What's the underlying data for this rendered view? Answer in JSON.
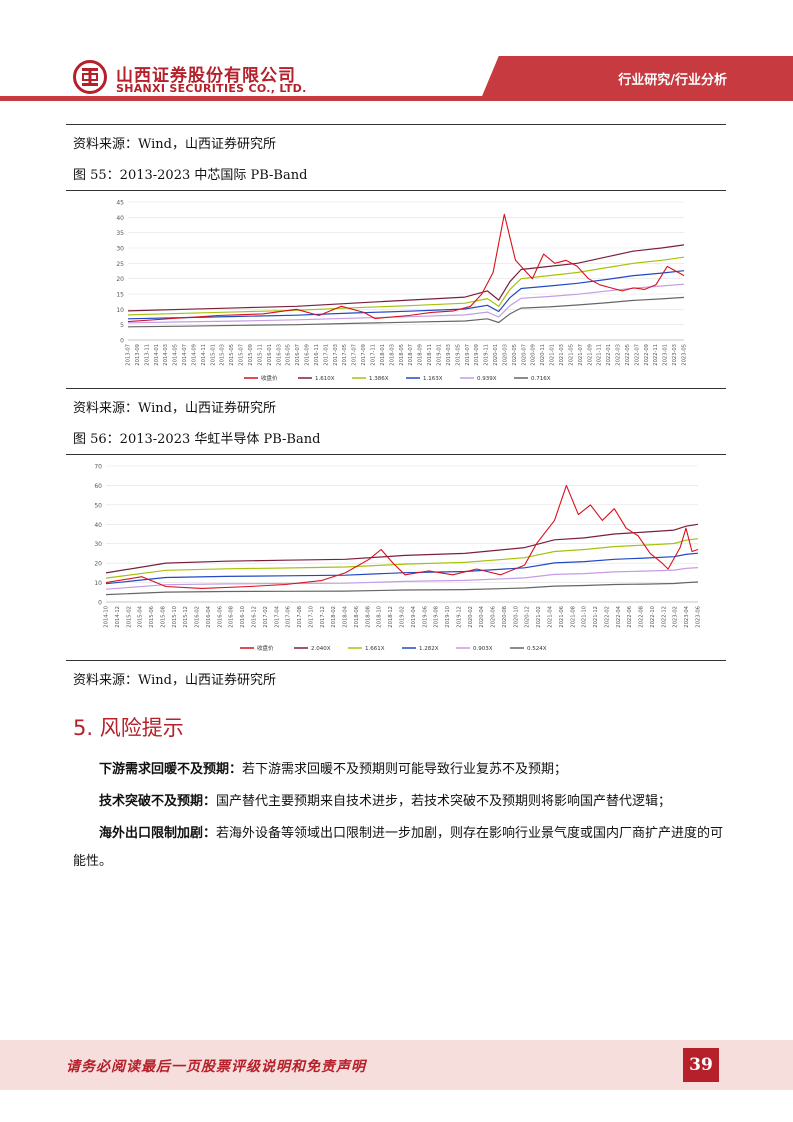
{
  "header": {
    "brand_cn": "山西证券股份有限公司",
    "brand_en": "SHANXI SECURITIES CO., LTD.",
    "section_tag": "行业研究/行业分析",
    "brand_color": "#b5202a"
  },
  "source_top": "资料来源：Wind，山西证券研究所",
  "figure55": {
    "title": "图 55：2013-2023 中芯国际 PB-Band",
    "source": "资料来源：Wind，山西证券研究所"
  },
  "figure56": {
    "title": "图 56：2013-2023 华虹半导体 PB-Band",
    "source": "资料来源：Wind，山西证券研究所"
  },
  "chart_data": [
    {
      "type": "line",
      "title": "",
      "ylim": [
        0,
        45
      ],
      "yticks": [
        "0",
        "5",
        "10",
        "15",
        "20",
        "25",
        "30",
        "35",
        "40",
        "45"
      ],
      "xticks": [
        "2013-07",
        "2013-09",
        "2013-11",
        "2014-01",
        "2014-03",
        "2014-05",
        "2014-07",
        "2014-09",
        "2014-11",
        "2015-01",
        "2015-03",
        "2015-05",
        "2015-07",
        "2015-09",
        "2015-11",
        "2016-01",
        "2016-03",
        "2016-05",
        "2016-07",
        "2016-09",
        "2016-11",
        "2017-01",
        "2017-03",
        "2017-05",
        "2017-07",
        "2017-09",
        "2017-11",
        "2018-01",
        "2018-03",
        "2018-05",
        "2018-07",
        "2018-09",
        "2018-11",
        "2019-01",
        "2019-03",
        "2019-05",
        "2019-07",
        "2019-09",
        "2019-11",
        "2020-01",
        "2020-03",
        "2020-05",
        "2020-07",
        "2020-09",
        "2020-11",
        "2021-01",
        "2021-03",
        "2021-05",
        "2021-07",
        "2021-09",
        "2021-11",
        "2022-01",
        "2022-03",
        "2022-05",
        "2022-07",
        "2022-09",
        "2022-11",
        "2023-01",
        "2023-03",
        "2023-05"
      ],
      "legend_position": "bottom",
      "series": [
        {
          "name": "收盘价",
          "color": "#d8111b",
          "points": [
            [
              0,
              6
            ],
            [
              8,
              7
            ],
            [
              16,
              8
            ],
            [
              24,
              8.5
            ],
            [
              30,
              10
            ],
            [
              34,
              8
            ],
            [
              38,
              11
            ],
            [
              42,
              9
            ],
            [
              44,
              7
            ],
            [
              50,
              8
            ],
            [
              54,
              9
            ],
            [
              58,
              9.5
            ],
            [
              61,
              11
            ],
            [
              63,
              15
            ],
            [
              65,
              22
            ],
            [
              67,
              41
            ],
            [
              69,
              26
            ],
            [
              70,
              24
            ],
            [
              72,
              20
            ],
            [
              74,
              28
            ],
            [
              76,
              25
            ],
            [
              78,
              26
            ],
            [
              80,
              24
            ],
            [
              82,
              20
            ],
            [
              84,
              18
            ],
            [
              86,
              17
            ],
            [
              88,
              16
            ],
            [
              90,
              17
            ],
            [
              92,
              16.5
            ],
            [
              94,
              18
            ],
            [
              96,
              24
            ],
            [
              98,
              22
            ],
            [
              99,
              21
            ]
          ]
        },
        {
          "name": "1.610X",
          "color": "#7a1f3d",
          "points": [
            [
              0,
              9.5
            ],
            [
              10,
              10
            ],
            [
              20,
              10.5
            ],
            [
              30,
              11
            ],
            [
              40,
              12
            ],
            [
              50,
              13
            ],
            [
              60,
              14
            ],
            [
              64,
              16
            ],
            [
              66,
              13
            ],
            [
              68,
              19
            ],
            [
              70,
              23
            ],
            [
              75,
              24
            ],
            [
              80,
              25
            ],
            [
              85,
              27
            ],
            [
              90,
              29
            ],
            [
              95,
              30
            ],
            [
              99,
              31
            ]
          ]
        },
        {
          "name": "1.386X",
          "color": "#a7c20d",
          "points": [
            [
              0,
              8.2
            ],
            [
              10,
              8.7
            ],
            [
              20,
              9.2
            ],
            [
              30,
              9.7
            ],
            [
              40,
              10.5
            ],
            [
              50,
              11.2
            ],
            [
              60,
              12
            ],
            [
              64,
              13.5
            ],
            [
              66,
              11
            ],
            [
              68,
              16.5
            ],
            [
              70,
              20
            ],
            [
              75,
              21
            ],
            [
              80,
              22
            ],
            [
              85,
              23.5
            ],
            [
              90,
              25
            ],
            [
              95,
              26
            ],
            [
              99,
              27
            ]
          ]
        },
        {
          "name": "1.163X",
          "color": "#2148c5",
          "points": [
            [
              0,
              6.9
            ],
            [
              10,
              7.3
            ],
            [
              20,
              7.7
            ],
            [
              30,
              8.1
            ],
            [
              40,
              8.8
            ],
            [
              50,
              9.4
            ],
            [
              60,
              10.1
            ],
            [
              64,
              11.3
            ],
            [
              66,
              9.3
            ],
            [
              68,
              13.8
            ],
            [
              70,
              16.8
            ],
            [
              75,
              17.6
            ],
            [
              80,
              18.5
            ],
            [
              85,
              19.7
            ],
            [
              90,
              21
            ],
            [
              95,
              21.8
            ],
            [
              99,
              22.6
            ]
          ]
        },
        {
          "name": "0.939X",
          "color": "#c59be6",
          "points": [
            [
              0,
              5.6
            ],
            [
              10,
              5.9
            ],
            [
              20,
              6.2
            ],
            [
              30,
              6.6
            ],
            [
              40,
              7.1
            ],
            [
              50,
              7.6
            ],
            [
              60,
              8.2
            ],
            [
              64,
              9.1
            ],
            [
              66,
              7.5
            ],
            [
              68,
              11.2
            ],
            [
              70,
              13.6
            ],
            [
              75,
              14.2
            ],
            [
              80,
              14.9
            ],
            [
              85,
              15.9
            ],
            [
              90,
              16.9
            ],
            [
              95,
              17.6
            ],
            [
              99,
              18.2
            ]
          ]
        },
        {
          "name": "0.716X",
          "color": "#666666",
          "points": [
            [
              0,
              4.3
            ],
            [
              10,
              4.5
            ],
            [
              20,
              4.8
            ],
            [
              30,
              5
            ],
            [
              40,
              5.4
            ],
            [
              50,
              5.8
            ],
            [
              60,
              6.2
            ],
            [
              64,
              6.9
            ],
            [
              66,
              5.7
            ],
            [
              68,
              8.5
            ],
            [
              70,
              10.4
            ],
            [
              75,
              10.8
            ],
            [
              80,
              11.4
            ],
            [
              85,
              12.1
            ],
            [
              90,
              12.9
            ],
            [
              95,
              13.4
            ],
            [
              99,
              13.9
            ]
          ]
        }
      ]
    },
    {
      "type": "line",
      "title": "",
      "ylim": [
        0,
        70
      ],
      "yticks": [
        "0",
        "10",
        "20",
        "30",
        "40",
        "50",
        "60",
        "70"
      ],
      "xticks": [
        "2014-10",
        "2014-12",
        "2015-02",
        "2015-04",
        "2015-06",
        "2015-08",
        "2015-10",
        "2015-12",
        "2016-02",
        "2016-04",
        "2016-06",
        "2016-08",
        "2016-10",
        "2016-12",
        "2017-02",
        "2017-04",
        "2017-06",
        "2017-08",
        "2017-10",
        "2017-12",
        "2018-02",
        "2018-04",
        "2018-06",
        "2018-08",
        "2018-10",
        "2018-12",
        "2019-02",
        "2019-04",
        "2019-06",
        "2019-08",
        "2019-10",
        "2019-12",
        "2020-02",
        "2020-04",
        "2020-06",
        "2020-08",
        "2020-10",
        "2020-12",
        "2021-02",
        "2021-04",
        "2021-06",
        "2021-08",
        "2021-10",
        "2021-12",
        "2022-02",
        "2022-04",
        "2022-06",
        "2022-08",
        "2022-10",
        "2022-12",
        "2023-02",
        "2023-04",
        "2023-06"
      ],
      "legend_position": "bottom",
      "series": [
        {
          "name": "收盘价",
          "color": "#d8111b",
          "points": [
            [
              0,
              10
            ],
            [
              6,
              13
            ],
            [
              10,
              8
            ],
            [
              16,
              7
            ],
            [
              24,
              8
            ],
            [
              30,
              9
            ],
            [
              36,
              11
            ],
            [
              40,
              15
            ],
            [
              44,
              22
            ],
            [
              46,
              27
            ],
            [
              48,
              20
            ],
            [
              50,
              14
            ],
            [
              54,
              16
            ],
            [
              58,
              14
            ],
            [
              62,
              17
            ],
            [
              66,
              14
            ],
            [
              70,
              19
            ],
            [
              72,
              30
            ],
            [
              75,
              42
            ],
            [
              77,
              60
            ],
            [
              79,
              45
            ],
            [
              81,
              50
            ],
            [
              83,
              42
            ],
            [
              85,
              48
            ],
            [
              87,
              38
            ],
            [
              89,
              34
            ],
            [
              91,
              25
            ],
            [
              93,
              20
            ],
            [
              94,
              17
            ],
            [
              96,
              28
            ],
            [
              97,
              38
            ],
            [
              98,
              26
            ],
            [
              99,
              27
            ]
          ]
        },
        {
          "name": "2.040X",
          "color": "#7a1f3d",
          "points": [
            [
              0,
              15
            ],
            [
              10,
              20
            ],
            [
              20,
              21
            ],
            [
              30,
              21.5
            ],
            [
              40,
              22
            ],
            [
              50,
              24
            ],
            [
              60,
              25
            ],
            [
              70,
              28
            ],
            [
              75,
              32
            ],
            [
              80,
              33
            ],
            [
              85,
              35
            ],
            [
              90,
              36
            ],
            [
              95,
              37
            ],
            [
              97,
              39
            ],
            [
              99,
              40
            ]
          ]
        },
        {
          "name": "1.661X",
          "color": "#a7c20d",
          "points": [
            [
              0,
              12.3
            ],
            [
              10,
              16.3
            ],
            [
              20,
              17.1
            ],
            [
              30,
              17.5
            ],
            [
              40,
              18
            ],
            [
              50,
              19.5
            ],
            [
              60,
              20.4
            ],
            [
              70,
              22.8
            ],
            [
              75,
              26
            ],
            [
              80,
              27
            ],
            [
              85,
              28.5
            ],
            [
              90,
              29.3
            ],
            [
              95,
              30.1
            ],
            [
              97,
              31.8
            ],
            [
              99,
              32.6
            ]
          ]
        },
        {
          "name": "1.282X",
          "color": "#2148c5",
          "points": [
            [
              0,
              9.4
            ],
            [
              10,
              12.6
            ],
            [
              20,
              13.2
            ],
            [
              30,
              13.5
            ],
            [
              40,
              13.8
            ],
            [
              50,
              15.1
            ],
            [
              60,
              15.7
            ],
            [
              70,
              17.6
            ],
            [
              75,
              20.1
            ],
            [
              80,
              20.8
            ],
            [
              85,
              22
            ],
            [
              90,
              22.6
            ],
            [
              95,
              23.3
            ],
            [
              97,
              24.5
            ],
            [
              99,
              25.1
            ]
          ]
        },
        {
          "name": "0.903X",
          "color": "#c59be6",
          "points": [
            [
              0,
              6.6
            ],
            [
              10,
              8.9
            ],
            [
              20,
              9.3
            ],
            [
              30,
              9.5
            ],
            [
              40,
              9.7
            ],
            [
              50,
              10.6
            ],
            [
              60,
              11.1
            ],
            [
              70,
              12.4
            ],
            [
              75,
              14.2
            ],
            [
              80,
              14.6
            ],
            [
              85,
              15.5
            ],
            [
              90,
              15.9
            ],
            [
              95,
              16.4
            ],
            [
              97,
              17.3
            ],
            [
              99,
              17.7
            ]
          ]
        },
        {
          "name": "0.524X",
          "color": "#666666",
          "points": [
            [
              0,
              3.8
            ],
            [
              10,
              5.1
            ],
            [
              20,
              5.4
            ],
            [
              30,
              5.5
            ],
            [
              40,
              5.6
            ],
            [
              50,
              6.2
            ],
            [
              60,
              6.4
            ],
            [
              70,
              7.2
            ],
            [
              75,
              8.2
            ],
            [
              80,
              8.5
            ],
            [
              85,
              9
            ],
            [
              90,
              9.2
            ],
            [
              95,
              9.5
            ],
            [
              97,
              10
            ],
            [
              99,
              10.3
            ]
          ]
        }
      ]
    }
  ],
  "section": {
    "number": "5.",
    "title": "风险提示"
  },
  "risks": [
    {
      "label": "下游需求回暖不及预期：",
      "text": "若下游需求回暖不及预期则可能导致行业复苏不及预期；"
    },
    {
      "label": "技术突破不及预期：",
      "text": "国产替代主要预期来自技术进步，若技术突破不及预期则将影响国产替代逻辑；"
    },
    {
      "label": "海外出口限制加剧：",
      "text": "若海外设备等领域出口限制进一步加剧，则存在影响行业景气度或国内厂商扩产进度的可能性。"
    }
  ],
  "footer": {
    "disclaimer": "请务必阅读最后一页股票评级说明和免责声明",
    "page": "39"
  }
}
